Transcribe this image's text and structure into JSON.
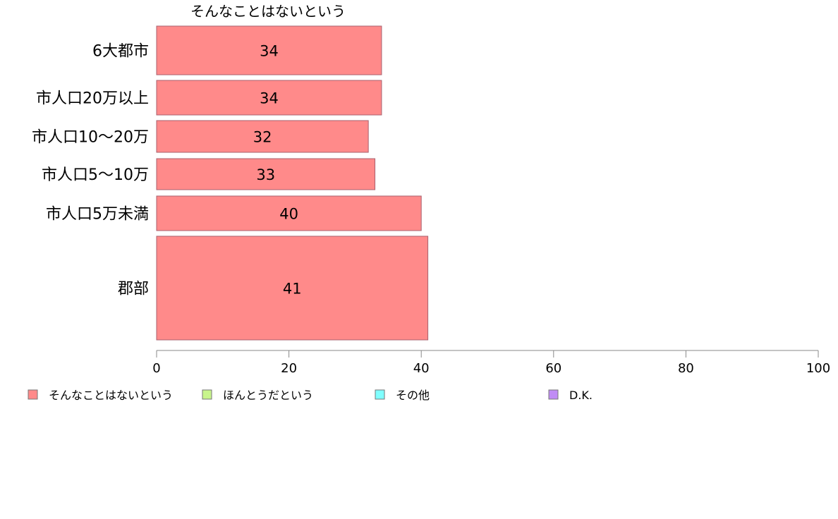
{
  "chart_data": {
    "type": "bar",
    "orientation": "horizontal",
    "title": "そんなことはないという",
    "xlabel": "",
    "ylabel": "",
    "xlim": [
      0,
      100
    ],
    "x_ticks": [
      0,
      20,
      40,
      60,
      80,
      100
    ],
    "grid": false,
    "legend_position": "bottom",
    "categories": [
      "6大都市",
      "市人口20万以上",
      "市人口10〜20万",
      "市人口5〜10万",
      "市人口5万未満",
      "郡部"
    ],
    "series": [
      {
        "name": "そんなことはないという",
        "color": "#ff8a8a",
        "values": [
          34,
          34,
          32,
          33,
          40,
          41
        ]
      }
    ],
    "legend": [
      {
        "label": "そんなことはないという",
        "color": "#ff8a8a"
      },
      {
        "label": "ほんとうだという",
        "color": "#c8f58c"
      },
      {
        "label": "その他",
        "color": "#80ffff"
      },
      {
        "label": "D.K.",
        "color": "#c08cf5"
      }
    ]
  }
}
